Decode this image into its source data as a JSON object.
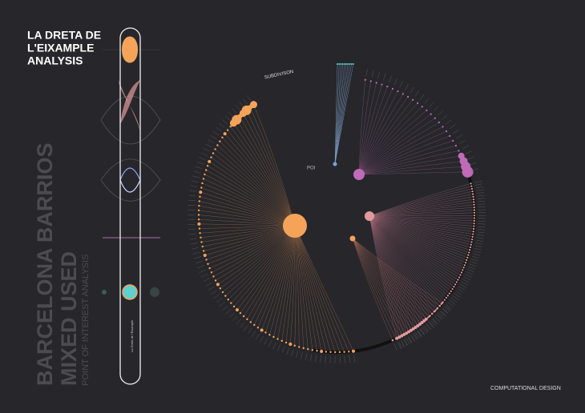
{
  "header": {
    "title_lines": [
      "LA DRETA DE",
      "L'EIXAMPLE",
      "ANALYSIS"
    ]
  },
  "side": {
    "line1": "BARCELONA BARRIOS",
    "line2": "MIXED USED",
    "line3": "POINT OF INTEREST ANALYSIS",
    "capsule_label": "La Dreta de l'Eixample"
  },
  "diagram": {
    "subdivision_label": "SUBDIVISON",
    "poi_label": "POI"
  },
  "footer": {
    "credit": "COMPUTATIONAL DESIGN"
  }
}
